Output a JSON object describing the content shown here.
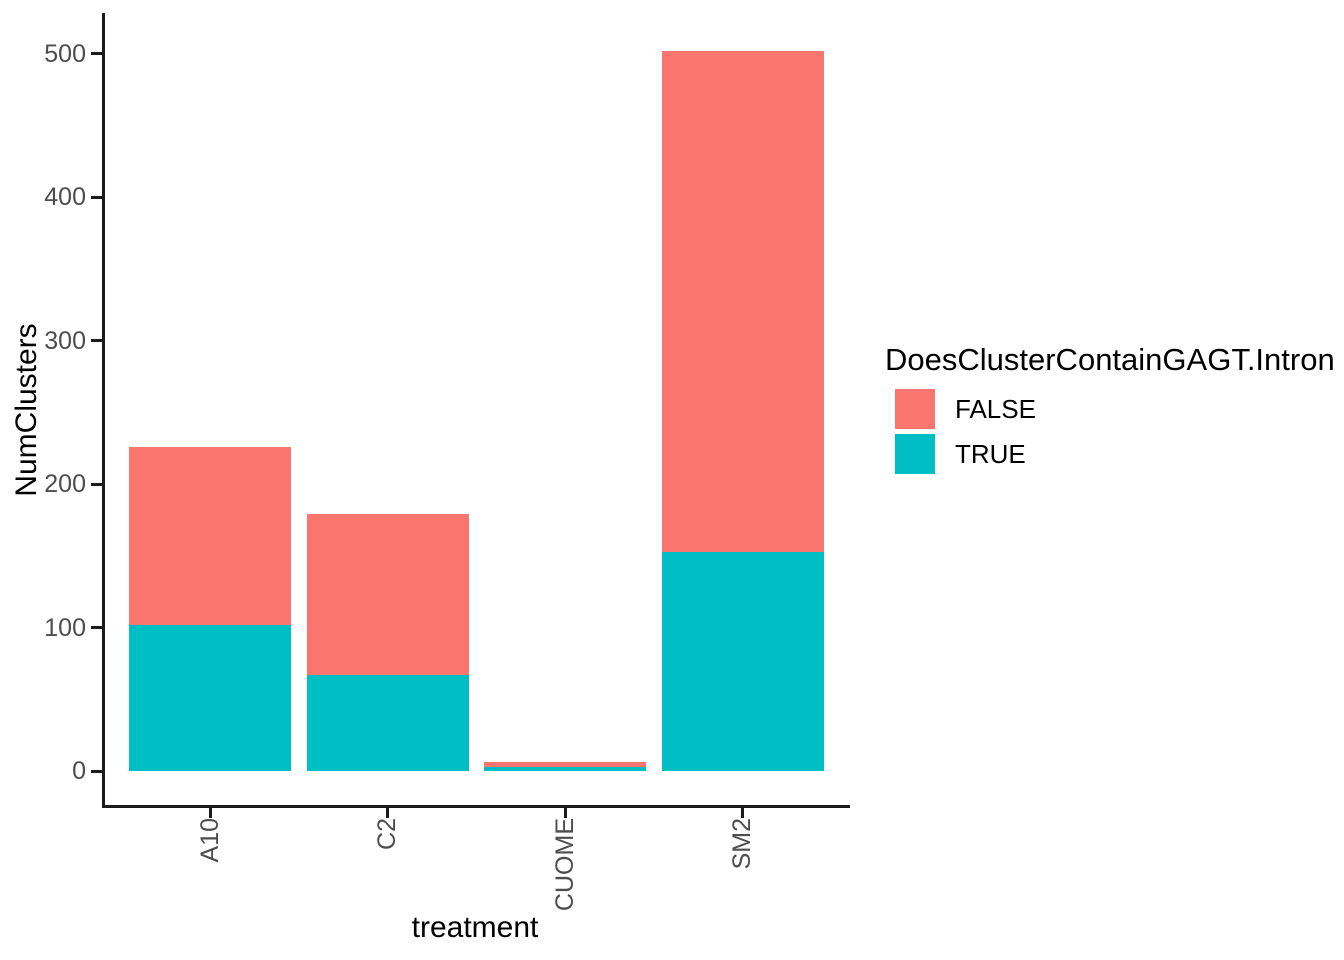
{
  "chart_data": {
    "type": "bar",
    "stacked": true,
    "title": "",
    "xlabel": "treatment",
    "ylabel": "NumClusters",
    "categories": [
      "A10",
      "C2",
      "CUOME",
      "SM2"
    ],
    "series": [
      {
        "name": "FALSE",
        "color": "#F8766D",
        "values": [
          124,
          112,
          3,
          349
        ]
      },
      {
        "name": "TRUE",
        "color": "#00BFC4",
        "values": [
          102,
          67,
          3,
          153
        ]
      }
    ],
    "totals": [
      226,
      179,
      6,
      502
    ],
    "ylim": [
      0,
      526
    ],
    "yticks": [
      0,
      100,
      200,
      300,
      400,
      500
    ],
    "grid": false,
    "panel_background": "#FFFFFF",
    "x_label_rotation_deg": 90,
    "legend_position": "right",
    "legend_title": "DoesClusterContainGAGT.Intron"
  },
  "axes": {
    "x_title": "treatment",
    "y_title": "NumClusters"
  },
  "legend": {
    "title": "DoesClusterContainGAGT.Intron",
    "items": [
      {
        "label": "FALSE",
        "color": "#F8766D"
      },
      {
        "label": "TRUE",
        "color": "#00BFC4"
      }
    ]
  }
}
